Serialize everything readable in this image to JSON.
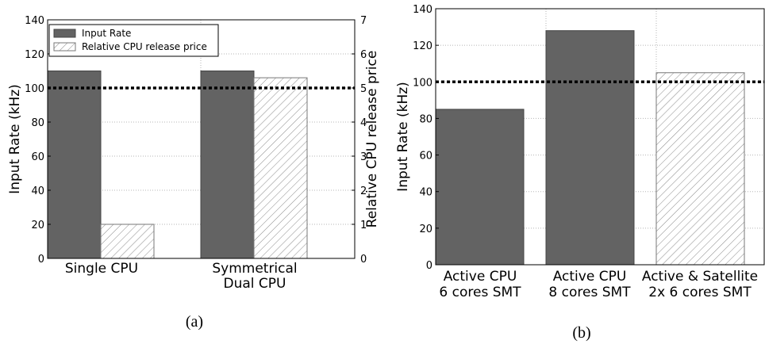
{
  "chart_data": [
    {
      "type": "bar",
      "panel_label": "(a)",
      "categories": [
        [
          "Single CPU"
        ],
        [
          "Symmetrical",
          "Dual CPU"
        ]
      ],
      "series": [
        {
          "name": "Input Rate",
          "axis": "left",
          "values": [
            110,
            110
          ],
          "fill": "#636363",
          "pattern": "solid"
        },
        {
          "name": "Relative CPU release price",
          "axis": "right",
          "values": [
            1.0,
            5.3
          ],
          "fill": "#ffffff",
          "pattern": "hatch"
        }
      ],
      "ylabel": "Input Rate (kHz)",
      "ylim": [
        0,
        140
      ],
      "yticks": [
        0,
        20,
        40,
        60,
        80,
        100,
        120,
        140
      ],
      "y2label": "Relative CPU release price",
      "y2lim": [
        0,
        7
      ],
      "y2ticks": [
        0,
        1,
        2,
        3,
        4,
        5,
        6,
        7
      ],
      "reference_line": {
        "value": 100,
        "style": "dotted",
        "color": "#000000"
      },
      "grid": true,
      "legend": "top-left"
    },
    {
      "type": "bar",
      "panel_label": "(b)",
      "categories": [
        [
          "Active CPU",
          "6 cores SMT"
        ],
        [
          "Active CPU",
          "8 cores SMT"
        ],
        [
          "Active & Satellite",
          "2x 6 cores SMT"
        ]
      ],
      "series": [
        {
          "values": [
            85,
            128,
            105
          ],
          "fills": [
            "#636363",
            "#636363",
            "#ffffff"
          ],
          "patterns": [
            "solid",
            "solid",
            "hatch"
          ]
        }
      ],
      "ylabel": "Input Rate (kHz)",
      "ylim": [
        0,
        140
      ],
      "yticks": [
        0,
        20,
        40,
        60,
        80,
        100,
        120,
        140
      ],
      "reference_line": {
        "value": 100,
        "style": "dotted",
        "color": "#000000"
      },
      "grid": true
    }
  ]
}
